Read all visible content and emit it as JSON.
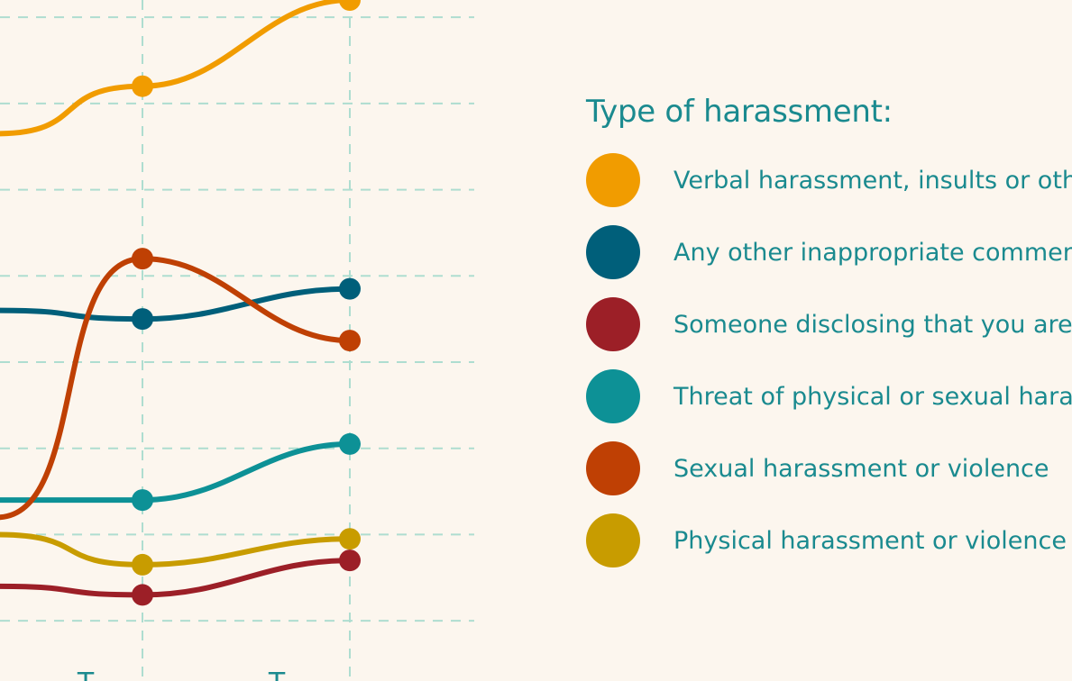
{
  "chart_data": {
    "type": "line",
    "title": "",
    "xlabel": "",
    "ylabel": "",
    "legend_title": "Type of harassment:",
    "legend_position": "right",
    "grid": true,
    "ylim": [
      -0.5,
      7.2
    ],
    "xlim": [
      -0.7,
      1
    ],
    "x": [
      0,
      1
    ],
    "series": [
      {
        "name": "Verbal harassment, insults or othe",
        "color": "#f19c00",
        "values": [
          6.2,
          7.2
        ]
      },
      {
        "name": "Any other inappropriate commen",
        "color": "#005f7a",
        "values": [
          3.5,
          3.85
        ]
      },
      {
        "name": "Someone disclosing that you are",
        "color": "#9c1f27",
        "values": [
          0.3,
          0.7
        ]
      },
      {
        "name": "Threat of physical or sexual haras",
        "color": "#0d9196",
        "values": [
          1.4,
          2.05
        ]
      },
      {
        "name": "Sexual harassment or violence",
        "color": "#bf4004",
        "values": [
          4.2,
          3.25
        ]
      },
      {
        "name": "Physical harassment or violence",
        "color": "#c89c00",
        "values": [
          0.65,
          0.95
        ]
      }
    ],
    "partial_tick_marks": [
      "T",
      "T"
    ]
  }
}
